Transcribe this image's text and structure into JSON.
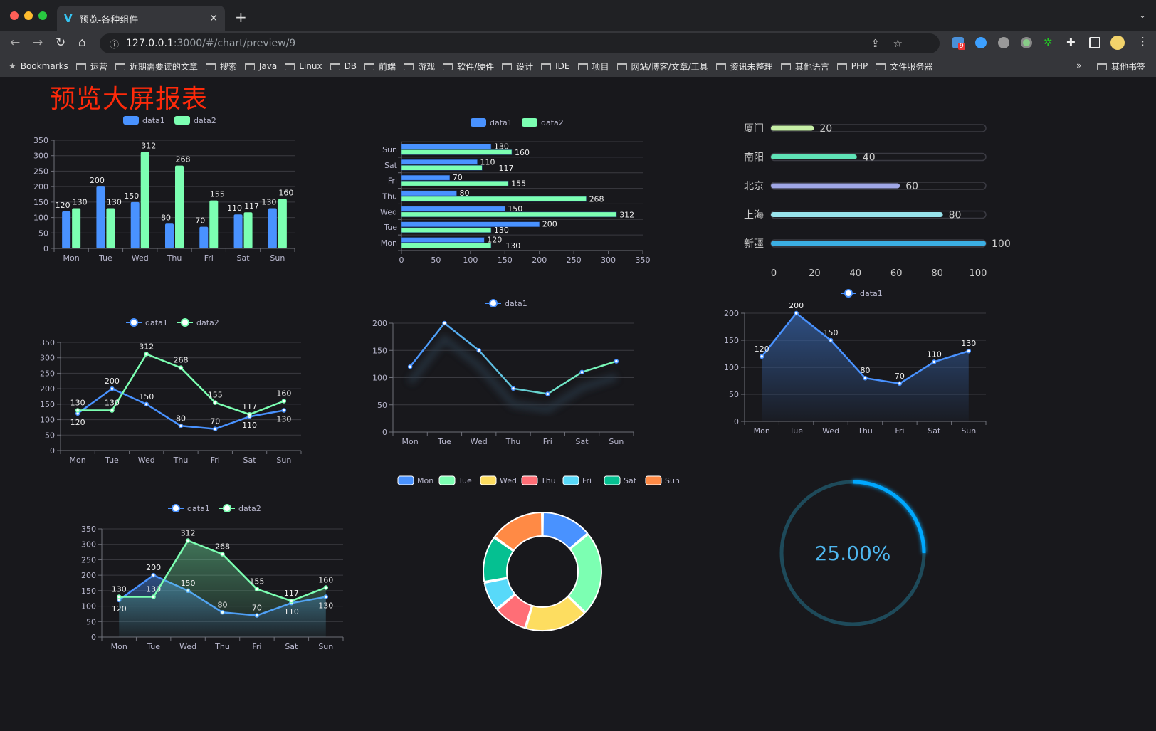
{
  "browser": {
    "tab_title": "预览-各种组件",
    "url_host": "127.0.0.1",
    "url_path": ":3000/#/chart/preview/9",
    "extension_badge": "9",
    "bookmarks": [
      "Bookmarks",
      "运营",
      "近期需要读的文章",
      "搜索",
      "Java",
      "Linux",
      "DB",
      "前端",
      "游戏",
      "软件/硬件",
      "设计",
      "IDE",
      "项目",
      "网站/博客/文章/工具",
      "资讯未整理",
      "其他语言",
      "PHP",
      "文件服务器"
    ],
    "bookmarks_overflow": "»",
    "other_bookmarks": "其他书签"
  },
  "page": {
    "title": "预览大屏报表"
  },
  "colors": {
    "data1": "#4992ff",
    "data2": "#7cffb2",
    "title": "#ff2a0a",
    "gauge": "#00a8ff"
  },
  "chart_data": [
    {
      "id": "bar",
      "type": "bar",
      "categories": [
        "Mon",
        "Tue",
        "Wed",
        "Thu",
        "Fri",
        "Sat",
        "Sun"
      ],
      "series": [
        {
          "name": "data1",
          "values": [
            120,
            200,
            150,
            80,
            70,
            110,
            130
          ]
        },
        {
          "name": "data2",
          "values": [
            130,
            130,
            312,
            268,
            155,
            117,
            160
          ]
        }
      ],
      "ylim": [
        0,
        350
      ],
      "yticks": [
        0,
        50,
        100,
        150,
        200,
        250,
        300,
        350
      ],
      "legend": "top",
      "grid": true
    },
    {
      "id": "hbar",
      "type": "bar",
      "orientation": "horizontal",
      "categories": [
        "Mon",
        "Tue",
        "Wed",
        "Thu",
        "Fri",
        "Sat",
        "Sun"
      ],
      "series": [
        {
          "name": "data1",
          "values": [
            120,
            200,
            150,
            80,
            70,
            110,
            130
          ]
        },
        {
          "name": "data2",
          "values": [
            130,
            130,
            312,
            268,
            155,
            117,
            160
          ]
        }
      ],
      "xlim": [
        0,
        350
      ],
      "xticks": [
        0,
        50,
        100,
        150,
        200,
        250,
        300,
        350
      ],
      "legend": "top",
      "grid": true
    },
    {
      "id": "progress",
      "type": "bar",
      "orientation": "horizontal",
      "categories": [
        "厦门",
        "南阳",
        "北京",
        "上海",
        "新疆"
      ],
      "values": [
        20,
        40,
        60,
        80,
        100
      ],
      "colors": [
        "#c6efa6",
        "#5fe3b6",
        "#a0a7e6",
        "#9ae5ee",
        "#3bafe4"
      ],
      "xlim": [
        0,
        100
      ],
      "xticks": [
        0,
        20,
        40,
        60,
        80,
        100
      ]
    },
    {
      "id": "line1",
      "type": "line",
      "categories": [
        "Mon",
        "Tue",
        "Wed",
        "Thu",
        "Fri",
        "Sat",
        "Sun"
      ],
      "series": [
        {
          "name": "data1",
          "values": [
            120,
            200,
            150,
            80,
            70,
            110,
            130
          ]
        },
        {
          "name": "data2",
          "values": [
            130,
            130,
            312,
            268,
            155,
            117,
            160
          ]
        }
      ],
      "ylim": [
        0,
        350
      ],
      "yticks": [
        0,
        50,
        100,
        150,
        200,
        250,
        300,
        350
      ],
      "legend": "top",
      "grid": true
    },
    {
      "id": "line2",
      "type": "line",
      "categories": [
        "Mon",
        "Tue",
        "Wed",
        "Thu",
        "Fri",
        "Sat",
        "Sun"
      ],
      "series": [
        {
          "name": "data1",
          "values": [
            120,
            200,
            150,
            80,
            70,
            110,
            130
          ]
        }
      ],
      "ylim": [
        0,
        200
      ],
      "yticks": [
        0,
        50,
        100,
        150,
        200
      ],
      "legend": "top",
      "grid": true
    },
    {
      "id": "area1",
      "type": "area",
      "categories": [
        "Mon",
        "Tue",
        "Wed",
        "Thu",
        "Fri",
        "Sat",
        "Sun"
      ],
      "series": [
        {
          "name": "data1",
          "values": [
            120,
            200,
            150,
            80,
            70,
            110,
            130
          ]
        }
      ],
      "ylim": [
        0,
        200
      ],
      "yticks": [
        0,
        50,
        100,
        150,
        200
      ],
      "legend": "top",
      "grid": true
    },
    {
      "id": "area2",
      "type": "area",
      "categories": [
        "Mon",
        "Tue",
        "Wed",
        "Thu",
        "Fri",
        "Sat",
        "Sun"
      ],
      "series": [
        {
          "name": "data1",
          "values": [
            120,
            200,
            150,
            80,
            70,
            110,
            130
          ]
        },
        {
          "name": "data2",
          "values": [
            130,
            130,
            312,
            268,
            155,
            117,
            160
          ]
        }
      ],
      "ylim": [
        0,
        350
      ],
      "yticks": [
        0,
        50,
        100,
        150,
        200,
        250,
        300,
        350
      ],
      "legend": "top",
      "grid": true
    },
    {
      "id": "pie",
      "type": "pie",
      "categories": [
        "Mon",
        "Tue",
        "Wed",
        "Thu",
        "Fri",
        "Sat",
        "Sun"
      ],
      "values": [
        120,
        200,
        150,
        80,
        70,
        110,
        130
      ],
      "colors": [
        "#4992ff",
        "#7cffb2",
        "#fddd60",
        "#ff6e76",
        "#58d9f9",
        "#05c091",
        "#ff8a45"
      ],
      "legend": "top",
      "donut": true
    },
    {
      "id": "gauge",
      "type": "gauge",
      "value": 0.25,
      "label": "25.00%"
    }
  ]
}
